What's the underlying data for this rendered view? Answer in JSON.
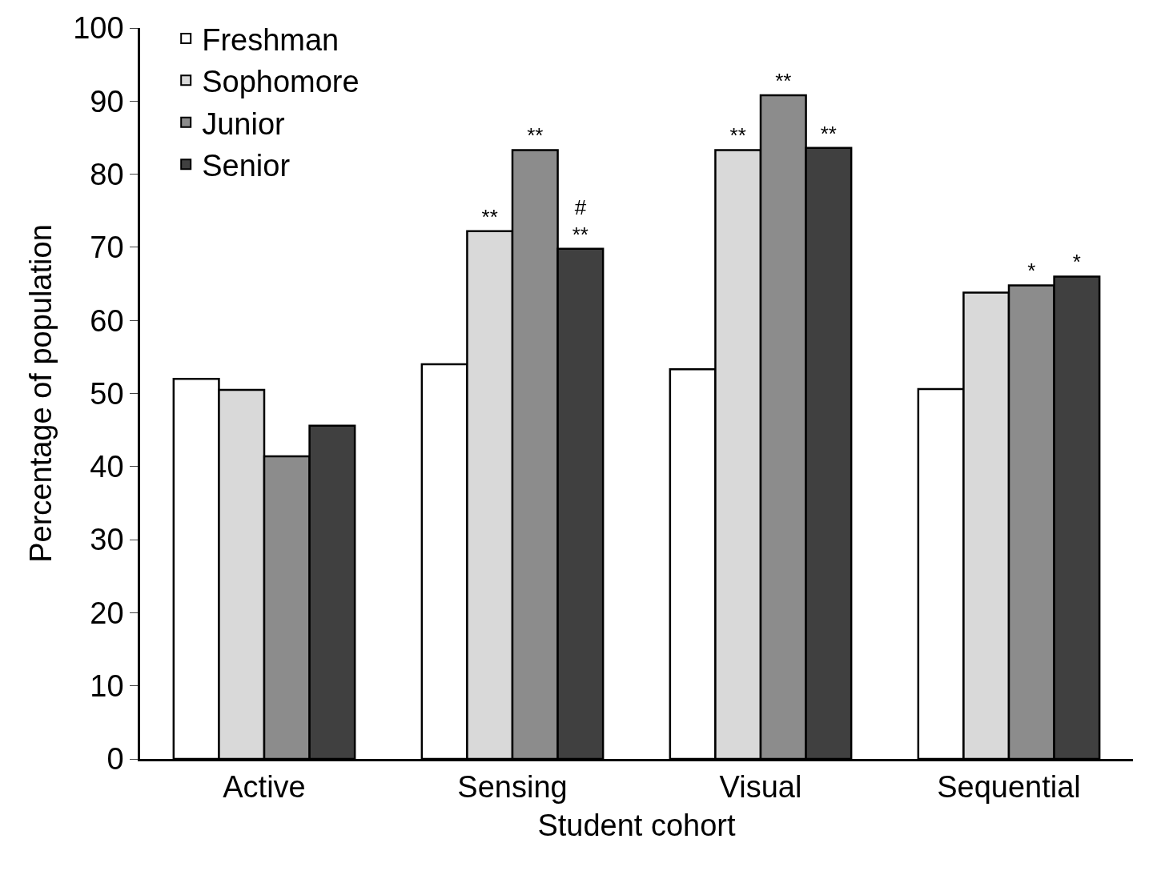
{
  "chart_data": {
    "type": "bar",
    "xlabel": "Student cohort",
    "ylabel": "Percentage of population",
    "categories": [
      "Active",
      "Sensing",
      "Visual",
      "Sequential"
    ],
    "series": [
      {
        "name": "Freshman",
        "color": "#ffffff",
        "values": [
          52,
          54,
          53.3,
          50.6
        ]
      },
      {
        "name": "Sophomore",
        "color": "#d9d9d9",
        "values": [
          50.5,
          72.2,
          83.3,
          63.8
        ],
        "value_labels": [
          null,
          "**",
          "**",
          null
        ]
      },
      {
        "name": "Junior",
        "color": "#8c8c8c",
        "values": [
          41.4,
          83.3,
          90.8,
          64.8
        ],
        "value_labels": [
          null,
          "**",
          "**",
          "*"
        ]
      },
      {
        "name": "Senior",
        "color": "#404040",
        "values": [
          45.6,
          69.8,
          83.6,
          66
        ],
        "value_labels": [
          null,
          "#\n**",
          "**",
          "*"
        ]
      }
    ],
    "ylim": [
      0,
      100
    ],
    "yticks": [
      0,
      10,
      20,
      30,
      40,
      50,
      60,
      70,
      80,
      90,
      100
    ],
    "legend": "top left"
  }
}
